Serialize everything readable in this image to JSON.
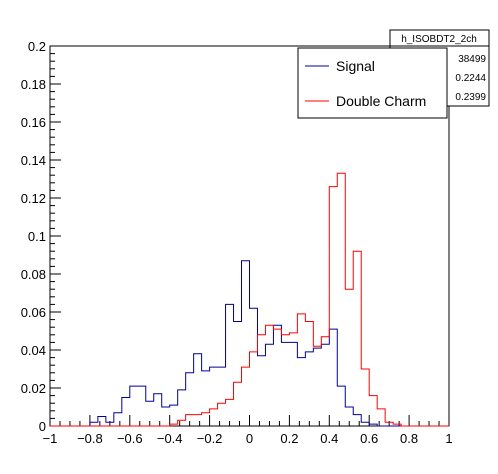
{
  "chart_data": {
    "type": "histogram",
    "title": "",
    "xlabel": "",
    "ylabel": "",
    "xlim": [
      -1,
      1
    ],
    "ylim": [
      0,
      0.2
    ],
    "grid": false,
    "x_ticks": [
      -1,
      -0.8,
      -0.6,
      -0.4,
      -0.2,
      0,
      0.2,
      0.4,
      0.6,
      0.8,
      1
    ],
    "x_tick_labels": [
      "−1",
      "−0.8",
      "−0.6",
      "−0.4",
      "−0.2",
      "0",
      "0.2",
      "0.4",
      "0.6",
      "0.8",
      "1"
    ],
    "y_ticks": [
      0,
      0.02,
      0.04,
      0.06,
      0.08,
      0.1,
      0.12,
      0.14,
      0.16,
      0.18,
      0.2
    ],
    "y_tick_labels": [
      "0",
      "0.02",
      "0.04",
      "0.06",
      "0.08",
      "0.1",
      "0.12",
      "0.14",
      "0.16",
      "0.18",
      "0.2"
    ],
    "bins": {
      "start": -1.0,
      "width": 0.04
    },
    "series": [
      {
        "name": "Signal",
        "color": "#000099",
        "values": [
          0,
          0,
          0,
          0,
          0,
          0.002,
          0.005,
          0.002,
          0.007,
          0.015,
          0.021,
          0.021,
          0.013,
          0.017,
          0.01,
          0.011,
          0.019,
          0.028,
          0.038,
          0.029,
          0.031,
          0.031,
          0.064,
          0.055,
          0.087,
          0.062,
          0.037,
          0.043,
          0.053,
          0.044,
          0.044,
          0.036,
          0.039,
          0.041,
          0.043,
          0.051,
          0.021,
          0.01,
          0.006,
          0.002,
          0.001,
          0,
          0,
          0,
          0,
          0,
          0,
          0,
          0,
          0
        ]
      },
      {
        "name": "Double Charm",
        "color": "#ff0000",
        "values": [
          0,
          0,
          0,
          0,
          0,
          0,
          0,
          0,
          0,
          0,
          0,
          0,
          0,
          0,
          0,
          0.001,
          0.003,
          0.006,
          0.006,
          0.007,
          0.009,
          0.012,
          0.014,
          0.023,
          0.031,
          0.039,
          0.048,
          0.053,
          0.051,
          0.048,
          0.049,
          0.059,
          0.055,
          0.042,
          0.047,
          0.126,
          0.133,
          0.072,
          0.092,
          0.03,
          0.016,
          0.009,
          0.002,
          0.001,
          0,
          0,
          0,
          0,
          0,
          0
        ]
      }
    ],
    "legend": {
      "placement": "top-right",
      "entries": [
        "Signal",
        "Double Charm"
      ]
    },
    "stats_box": {
      "title": "h_ISOBDT2_2ch",
      "values": [
        "38499",
        "0.2244",
        "0.2399"
      ]
    }
  }
}
